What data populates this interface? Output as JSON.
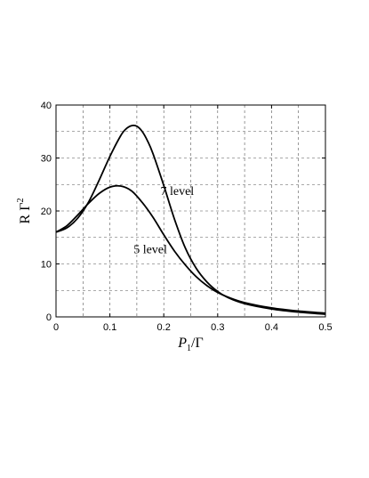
{
  "chart_data": {
    "type": "line",
    "xlabel": {
      "main": "P",
      "sub": "1",
      "rest": "/Γ"
    },
    "ylabel": {
      "main": "R Γ",
      "sup": "2"
    },
    "xlim": [
      0,
      0.5
    ],
    "ylim": [
      0,
      40
    ],
    "xticks": [
      0,
      0.1,
      0.2,
      0.3,
      0.4,
      0.5
    ],
    "yticks": [
      0,
      10,
      20,
      30,
      40
    ],
    "xtick_labels": [
      "0",
      "0.1",
      "0.2",
      "0.3",
      "0.4",
      "0.5"
    ],
    "ytick_labels": [
      "0",
      "10",
      "20",
      "30",
      "40"
    ],
    "grid": true,
    "series": [
      {
        "name": "7 level",
        "x": [
          0,
          0.02,
          0.04,
          0.06,
          0.08,
          0.1,
          0.12,
          0.13,
          0.14,
          0.15,
          0.16,
          0.17,
          0.18,
          0.2,
          0.22,
          0.24,
          0.26,
          0.28,
          0.3,
          0.32,
          0.35,
          0.4,
          0.45,
          0.5
        ],
        "y": [
          16,
          16.8,
          18.6,
          21.6,
          25.8,
          30.3,
          34.2,
          35.5,
          36.1,
          36.0,
          35.0,
          33.2,
          30.8,
          24.8,
          18.4,
          13.0,
          9.2,
          6.6,
          4.8,
          3.6,
          2.5,
          1.5,
          0.9,
          0.5
        ]
      },
      {
        "name": "5 level",
        "x": [
          0,
          0.02,
          0.04,
          0.06,
          0.08,
          0.1,
          0.12,
          0.14,
          0.16,
          0.18,
          0.2,
          0.22,
          0.24,
          0.26,
          0.28,
          0.3,
          0.32,
          0.35,
          0.4,
          0.45,
          0.5
        ],
        "y": [
          16,
          17.2,
          19.2,
          21.4,
          23.3,
          24.5,
          24.7,
          23.8,
          21.6,
          18.8,
          15.5,
          12.4,
          9.8,
          7.6,
          5.9,
          4.6,
          3.7,
          2.7,
          1.7,
          1.1,
          0.7
        ]
      }
    ],
    "annotations": [
      {
        "text": "7 level",
        "x": 0.225,
        "y": 23
      },
      {
        "text": "5 level",
        "x": 0.175,
        "y": 12
      }
    ]
  }
}
